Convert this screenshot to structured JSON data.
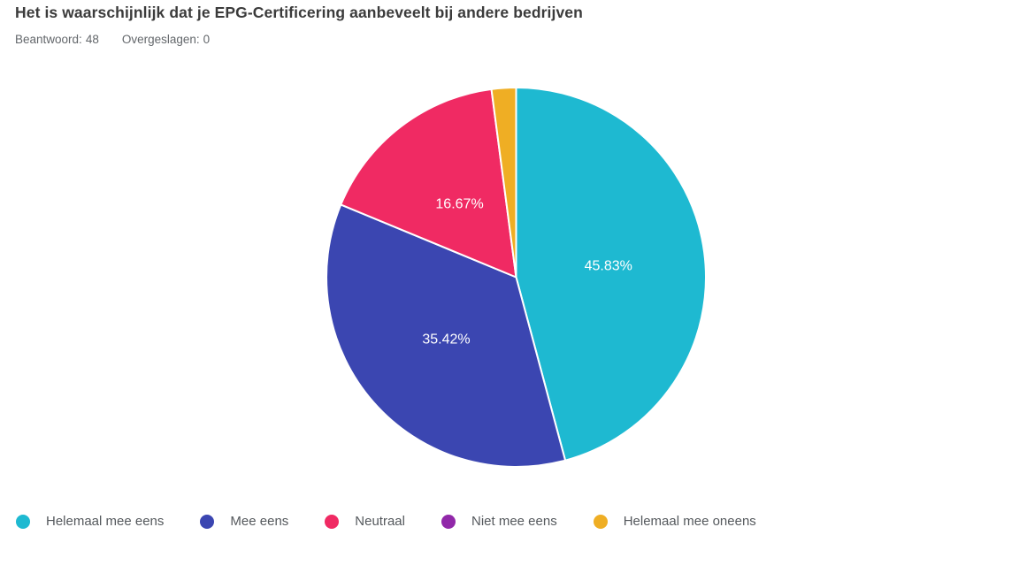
{
  "header": {
    "title": "Het is waarschijnlijk dat je EPG-Certificering aanbeveelt bij andere bedrijven",
    "answered_label": "Beantwoord:",
    "answered_value": "48",
    "skipped_label": "Overgeslagen:",
    "skipped_value": "0"
  },
  "chart_data": {
    "type": "pie",
    "title": "Het is waarschijnlijk dat je EPG-Certificering aanbeveelt bij andere bedrijven",
    "answered": 48,
    "skipped": 0,
    "start_angle": "top (12 o'clock)",
    "direction": "clockwise",
    "legend_position": "bottom",
    "slice_label_color": "#ffffff",
    "slices": [
      {
        "label": "Helemaal mee eens",
        "value": 45.83,
        "display": "45.83%",
        "color": "#1EB9D1"
      },
      {
        "label": "Mee eens",
        "value": 35.42,
        "display": "35.42%",
        "color": "#3B46B1"
      },
      {
        "label": "Neutraal",
        "value": 16.67,
        "display": "16.67%",
        "color": "#F02A63"
      },
      {
        "label": "Niet mee eens",
        "value": 0,
        "display": null,
        "color": "#9128A9"
      },
      {
        "label": "Helemaal mee oneens",
        "value": 2.08,
        "display": null,
        "color": "#EFAE24"
      }
    ]
  }
}
